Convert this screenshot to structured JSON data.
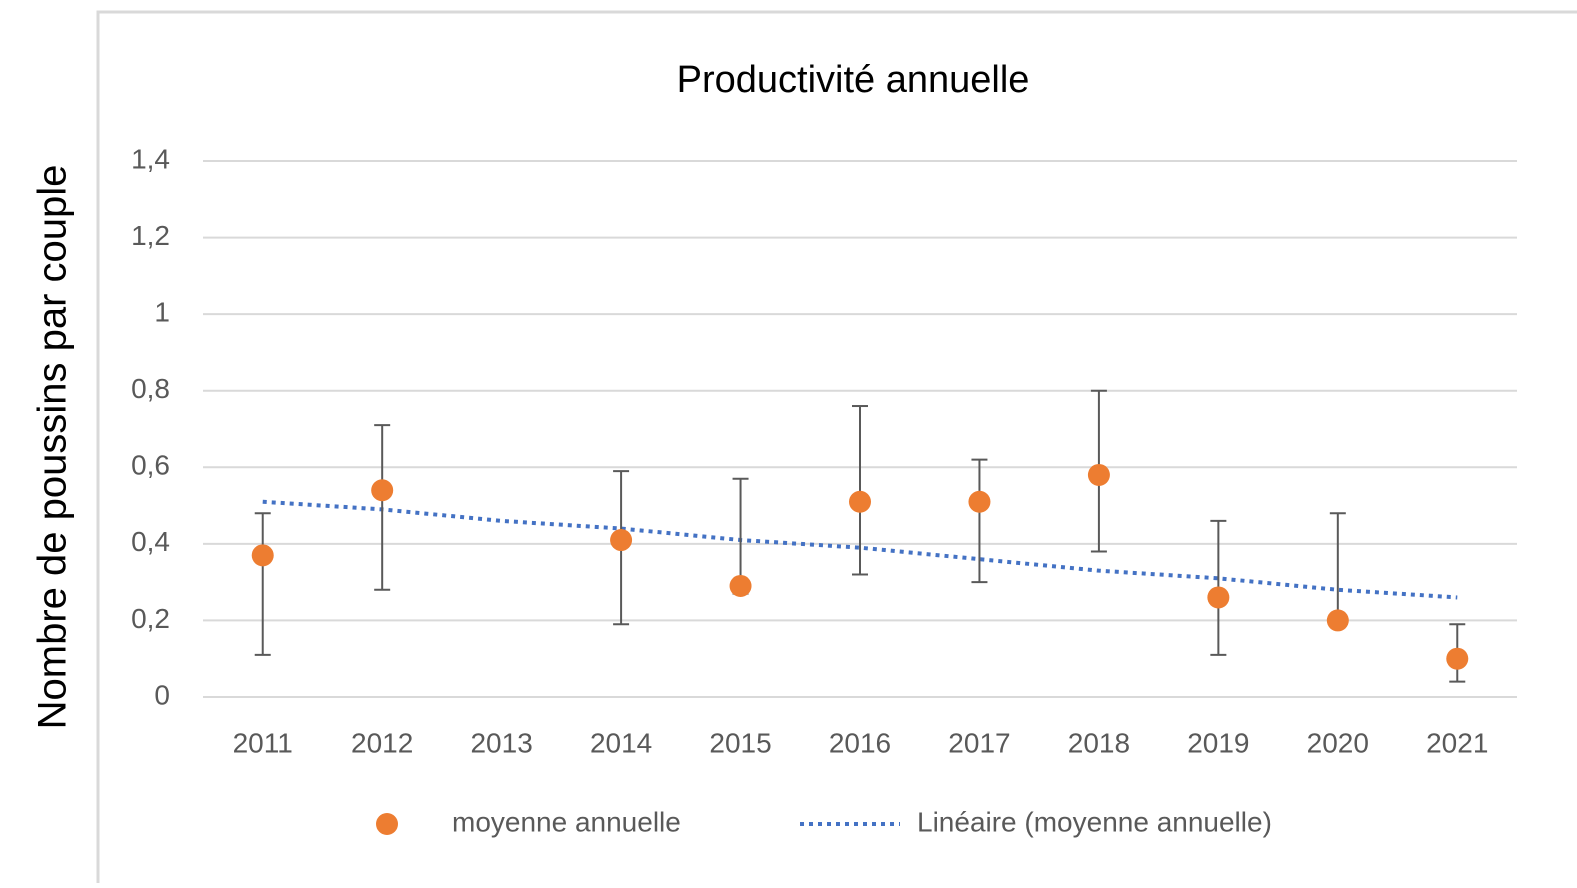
{
  "chart_data": {
    "type": "scatter",
    "title": "Productivité annuelle",
    "y_label": "Nombre de poussins par couple",
    "categories": [
      "2011",
      "2012",
      "2013",
      "2014",
      "2015",
      "2016",
      "2017",
      "2018",
      "2019",
      "2020",
      "2021"
    ],
    "series": [
      {
        "name": "moyenne annuelle",
        "color": "#ed7d31",
        "values": [
          0.37,
          0.54,
          null,
          0.41,
          0.29,
          0.51,
          0.51,
          0.58,
          0.26,
          0.2,
          0.1
        ],
        "error_plus": [
          0.11,
          0.17,
          null,
          0.18,
          0.28,
          0.25,
          0.11,
          0.22,
          0.2,
          0.28,
          0.09
        ],
        "error_minus": [
          0.26,
          0.26,
          null,
          0.22,
          0.02,
          0.19,
          0.21,
          0.2,
          0.15,
          0,
          0.06
        ]
      },
      {
        "name": "Linéaire (moyenne annuelle)",
        "color": "#4472c4",
        "style": "dotted",
        "values": [
          0.51,
          0.49,
          0.46,
          0.44,
          0.41,
          0.39,
          0.36,
          0.33,
          0.31,
          0.28,
          0.26
        ]
      }
    ],
    "ylim": [
      0,
      1.4
    ],
    "yticks": [
      0,
      {
        "value": 0.2,
        "label": "0,2"
      },
      {
        "value": 0.4,
        "label": "0,4"
      },
      {
        "value": 0.6,
        "label": "0,6"
      },
      {
        "value": 0.8,
        "label": "0,8"
      },
      1,
      {
        "value": 1.2,
        "label": "1,2"
      },
      {
        "value": 1.4,
        "label": "1,4"
      }
    ],
    "grid": true,
    "legend": "bottom"
  }
}
